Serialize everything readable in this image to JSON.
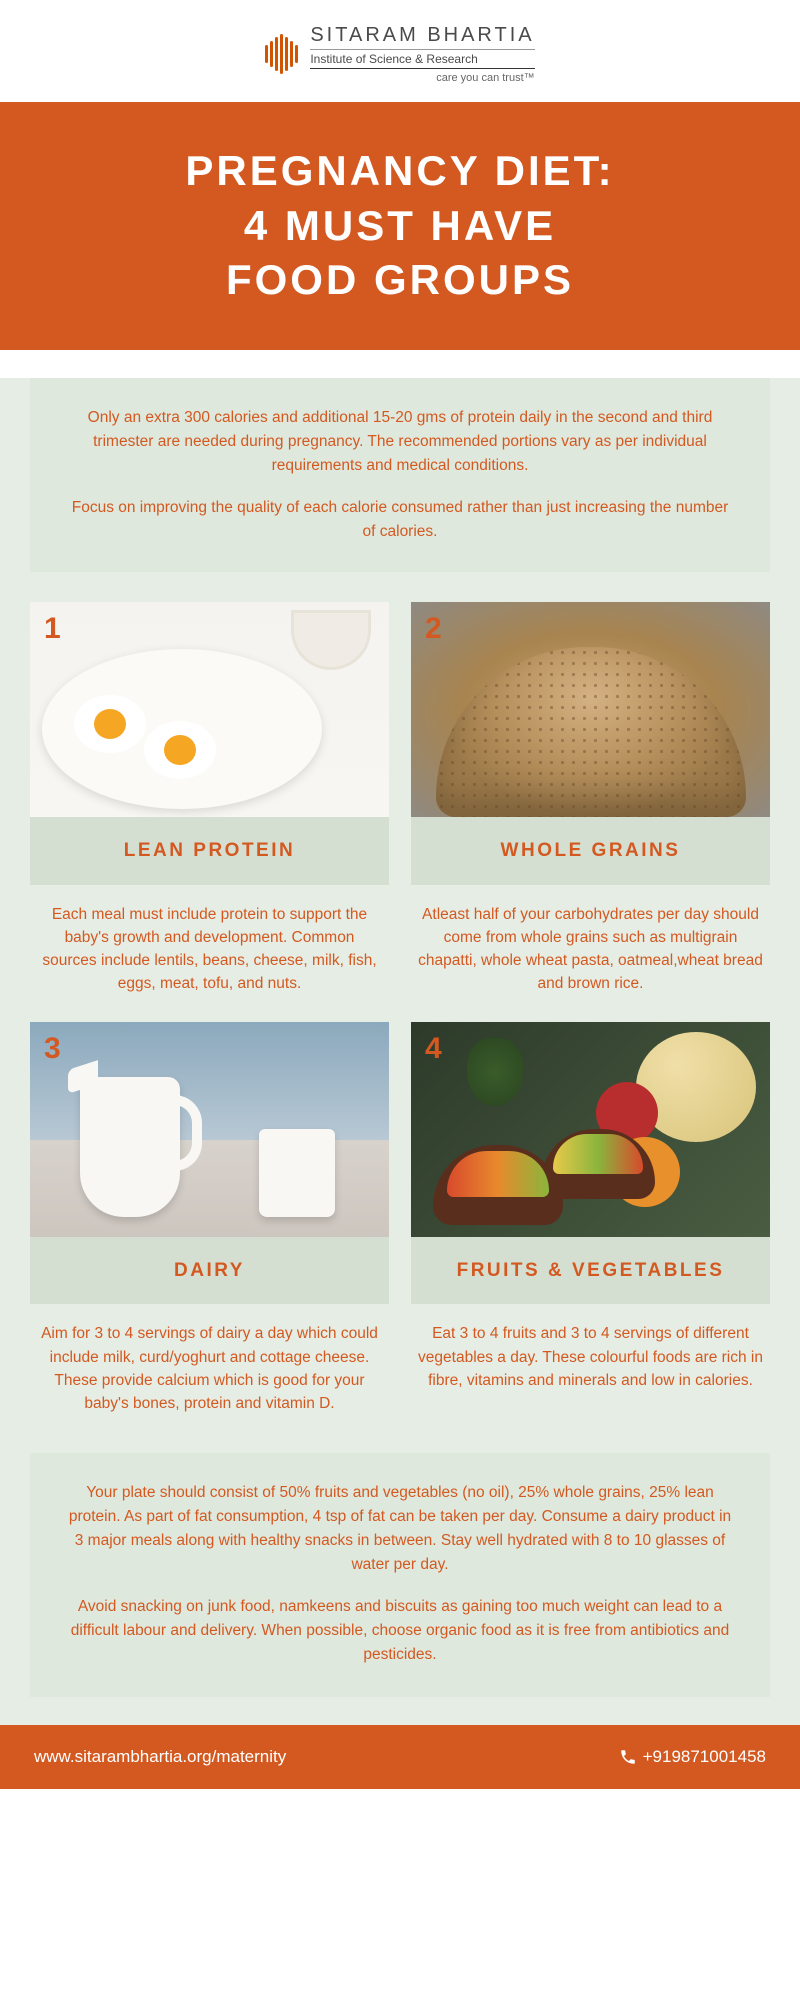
{
  "logo": {
    "title": "SITARAM BHARTIA",
    "subtitle": "Institute of Science & Research",
    "tagline": "care you can trust™"
  },
  "hero_title": "PREGNANCY DIET:\n4 MUST HAVE\nFOOD GROUPS",
  "intro": {
    "p1": "Only an extra 300 calories and additional 15-20 gms of protein daily in the second and third trimester are needed during pregnancy. The recommended portions vary as per individual requirements and medical conditions.",
    "p2": "Focus on improving the quality of each calorie consumed rather than just increasing the number of calories."
  },
  "cards": [
    {
      "num": "1",
      "title": "LEAN PROTEIN",
      "desc": "Each meal must include protein to support the baby's growth and development. Common sources include lentils, beans, cheese, milk, fish, eggs, meat, tofu,  and nuts."
    },
    {
      "num": "2",
      "title": "WHOLE GRAINS",
      "desc": "Atleast half of your carbohydrates per day should come from whole grains such as multigrain chapatti, whole wheat pasta, oatmeal,wheat bread and brown rice."
    },
    {
      "num": "3",
      "title": "DAIRY",
      "desc": "Aim for 3 to 4 servings of dairy a day which could include milk, curd/yoghurt and cottage cheese. These provide calcium which is good for your baby's bones, protein and vitamin D."
    },
    {
      "num": "4",
      "title": "FRUITS & VEGETABLES",
      "desc": "Eat 3 to 4 fruits and 3 to 4 servings of different vegetables  a  day. These colourful foods are rich in fibre, vitamins and minerals and low in calories."
    }
  ],
  "outro": {
    "p1": "Your plate should consist of 50% fruits and vegetables (no oil), 25% whole grains, 25% lean protein. As part of fat consumption, 4 tsp of fat can be taken per day. Consume a dairy product in 3 major meals along with healthy snacks in between. Stay well hydrated with 8 to 10 glasses of water per day.",
    "p2": "Avoid snacking on junk food, namkeens and biscuits as gaining too much weight can lead to a difficult labour and delivery. When possible, choose organic food as it is free from antibiotics and pesticides."
  },
  "footer": {
    "url": "www.sitarambhartia.org/maternity",
    "phone": "+919871001458"
  },
  "colors": {
    "accent": "#d35921",
    "content_bg": "#e6ede4",
    "box_bg": "#dfe8dc",
    "titlebar_bg": "#d5dfd1"
  }
}
